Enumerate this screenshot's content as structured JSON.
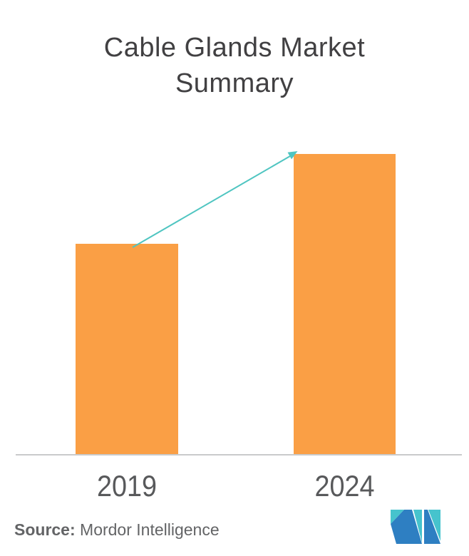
{
  "title": {
    "line1": "Cable Glands Market",
    "line2": "Summary"
  },
  "chart_data": {
    "type": "bar",
    "title": "Cable Glands Market Summary",
    "categories": [
      "2019",
      "2024"
    ],
    "values": [
      296,
      422
    ],
    "value_units": "relative bar height (no numeric axis shown)",
    "xlabel": "",
    "ylabel": "",
    "grid": false,
    "legend": false,
    "bar_color": "#FA9F45",
    "axis_line_color": "#C9CACB",
    "annotations": [
      {
        "type": "growth-arrow",
        "from_category": "2019",
        "to_category": "2024",
        "color": "#4FC5C1"
      }
    ]
  },
  "source": {
    "label": "Source:",
    "text": " Mordor Intelligence"
  },
  "logo": {
    "name": "mordor-intelligence-logo",
    "teal": "#46C3CD",
    "blue": "#2E7FC2"
  },
  "colors": {
    "title_text": "#414042",
    "tick_text": "#58595B",
    "source_text": "#636466",
    "background": "#FFFFFF"
  }
}
